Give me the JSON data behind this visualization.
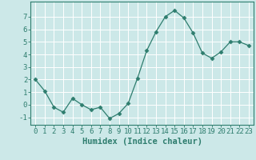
{
  "x": [
    0,
    1,
    2,
    3,
    4,
    5,
    6,
    7,
    8,
    9,
    10,
    11,
    12,
    13,
    14,
    15,
    16,
    17,
    18,
    19,
    20,
    21,
    22,
    23
  ],
  "y": [
    2.0,
    1.1,
    -0.2,
    -0.6,
    0.5,
    0.0,
    -0.4,
    -0.2,
    -1.1,
    -0.7,
    0.1,
    2.1,
    4.3,
    5.8,
    7.0,
    7.5,
    6.9,
    5.7,
    4.1,
    3.7,
    4.2,
    5.0,
    5.0,
    4.7
  ],
  "line_color": "#2e7d6e",
  "marker": "D",
  "marker_size": 2.5,
  "bg_color": "#cce8e8",
  "grid_color": "#ffffff",
  "xlabel": "Humidex (Indice chaleur)",
  "xlim": [
    -0.5,
    23.5
  ],
  "ylim": [
    -1.6,
    8.2
  ],
  "yticks": [
    -1,
    0,
    1,
    2,
    3,
    4,
    5,
    6,
    7
  ],
  "xticks": [
    0,
    1,
    2,
    3,
    4,
    5,
    6,
    7,
    8,
    9,
    10,
    11,
    12,
    13,
    14,
    15,
    16,
    17,
    18,
    19,
    20,
    21,
    22,
    23
  ],
  "tick_color": "#2e7d6e",
  "label_fontsize": 6.5,
  "xlabel_fontsize": 7.5
}
